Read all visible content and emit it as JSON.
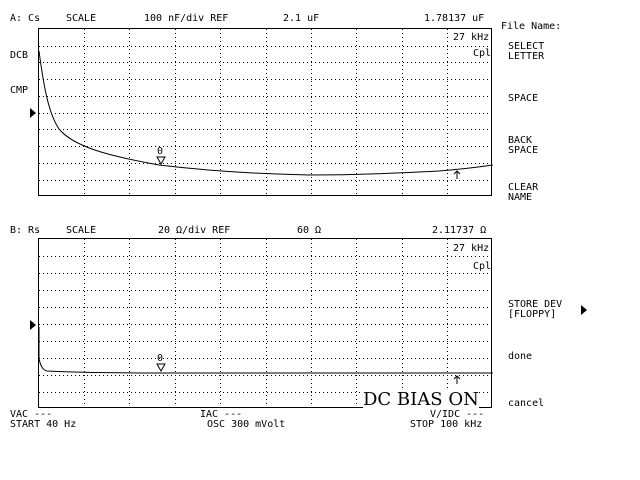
{
  "trace_a": {
    "header": {
      "channel": "A: Cs",
      "scale": "SCALE",
      "per_div": "100 nF/div REF",
      "ref_value": "2.1 uF",
      "marker_value": "1.78137 uF"
    },
    "marker_freq": "27 kHz",
    "mode": "Cpl",
    "side_labels": [
      "DCB",
      "CMP"
    ],
    "marker_label": "0"
  },
  "trace_b": {
    "header": {
      "channel": "B: Rs",
      "scale": "SCALE",
      "per_div": "20 Ω/div REF",
      "ref_value": "60 Ω",
      "marker_value": "2.11737 Ω"
    },
    "marker_freq": "27 kHz",
    "mode": "Cpl",
    "marker_label": "0"
  },
  "overlay": "DC BIAS ON",
  "footer": {
    "vac": "VAC ---",
    "iac": "IAC ---",
    "vidc": "V/IDC ---",
    "start": "START 40 Hz",
    "osc": "OSC 300 mVolt",
    "stop": "STOP 100 kHz"
  },
  "softkeys": {
    "title": "File Name:",
    "select_letter": "SELECT\nLETTER",
    "space": "SPACE",
    "back_space": "BACK\nSPACE",
    "clear_name": "CLEAR\nNAME",
    "store_dev": "STORE DEV\n[FLOPPY]",
    "done": "done",
    "cancel": "cancel"
  },
  "icons": {
    "ref_pointer": "triangle-right-icon",
    "marker": "triangle-down-icon",
    "active_marker": "up-arrow-icon",
    "submenu": "triangle-right-icon"
  },
  "colors": {
    "background": "#ffffff",
    "foreground": "#000000"
  }
}
